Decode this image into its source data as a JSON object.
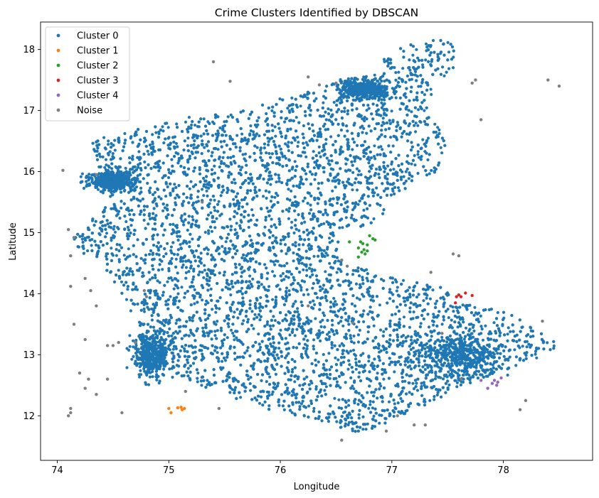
{
  "chart_data": {
    "type": "scatter",
    "title": "Crime Clusters Identified by DBSCAN",
    "xlabel": "Longitude",
    "ylabel": "Latitude",
    "xlim": [
      73.85,
      78.8
    ],
    "ylim": [
      11.27,
      18.45
    ],
    "xticks": [
      74,
      75,
      76,
      77,
      78
    ],
    "yticks": [
      12,
      13,
      14,
      15,
      16,
      17,
      18
    ],
    "grid": false,
    "legend_position": "top-left",
    "series": [
      {
        "name": "Cluster 0",
        "color": "#1f77b4",
        "region_outline": [
          [
            74.15,
            14.9
          ],
          [
            74.4,
            15.5
          ],
          [
            74.5,
            15.4
          ],
          [
            74.3,
            16.5
          ],
          [
            74.7,
            16.7
          ],
          [
            75.2,
            16.9
          ],
          [
            75.6,
            17.0
          ],
          [
            76.2,
            17.3
          ],
          [
            76.5,
            17.5
          ],
          [
            76.8,
            17.6
          ],
          [
            77.0,
            18.0
          ],
          [
            77.2,
            18.15
          ],
          [
            77.5,
            18.15
          ],
          [
            77.65,
            17.9
          ],
          [
            77.45,
            17.5
          ],
          [
            77.3,
            17.0
          ],
          [
            77.5,
            16.5
          ],
          [
            77.4,
            16.0
          ],
          [
            77.0,
            15.6
          ],
          [
            76.9,
            15.2
          ],
          [
            76.55,
            15.0
          ],
          [
            76.5,
            14.6
          ],
          [
            76.9,
            14.3
          ],
          [
            77.2,
            14.2
          ],
          [
            77.45,
            14.1
          ],
          [
            77.6,
            13.85
          ],
          [
            77.95,
            13.8
          ],
          [
            78.4,
            13.3
          ],
          [
            78.55,
            13.2
          ],
          [
            78.3,
            12.95
          ],
          [
            77.9,
            12.65
          ],
          [
            77.5,
            12.35
          ],
          [
            77.1,
            12.0
          ],
          [
            76.7,
            11.7
          ],
          [
            76.4,
            11.9
          ],
          [
            75.9,
            12.1
          ],
          [
            75.4,
            12.4
          ],
          [
            75.0,
            12.75
          ],
          [
            74.8,
            13.1
          ],
          [
            74.7,
            13.6
          ],
          [
            74.45,
            14.3
          ],
          [
            74.2,
            14.7
          ]
        ],
        "hotspots": [
          {
            "center": [
              77.6,
              13.0
            ],
            "spread": [
              0.3,
              0.25
            ]
          },
          {
            "center": [
              76.75,
              17.35
            ],
            "spread": [
              0.15,
              0.1
            ]
          },
          {
            "center": [
              74.5,
              15.85
            ],
            "spread": [
              0.15,
              0.12
            ]
          },
          {
            "center": [
              74.85,
              13.0
            ],
            "spread": [
              0.12,
              0.25
            ]
          }
        ]
      },
      {
        "name": "Cluster 1",
        "color": "#ff7f0e",
        "points": [
          [
            75.0,
            12.12
          ],
          [
            75.02,
            12.05
          ],
          [
            75.08,
            12.13
          ],
          [
            75.11,
            12.14
          ],
          [
            75.12,
            12.1
          ],
          [
            75.14,
            12.12
          ]
        ]
      },
      {
        "name": "Cluster 2",
        "color": "#2ca02c",
        "points": [
          [
            76.62,
            14.85
          ],
          [
            76.7,
            14.6
          ],
          [
            76.7,
            14.75
          ],
          [
            76.72,
            14.85
          ],
          [
            76.75,
            14.72
          ],
          [
            76.76,
            14.65
          ],
          [
            76.78,
            14.8
          ],
          [
            76.8,
            14.95
          ],
          [
            76.83,
            14.9
          ],
          [
            76.85,
            14.88
          ],
          [
            76.73,
            14.68
          ],
          [
            76.78,
            14.7
          ],
          [
            76.74,
            14.82
          ]
        ]
      },
      {
        "name": "Cluster 3",
        "color": "#d62728",
        "points": [
          [
            77.57,
            13.85
          ],
          [
            77.58,
            13.95
          ],
          [
            77.6,
            13.98
          ],
          [
            77.62,
            13.95
          ],
          [
            77.66,
            14.01
          ],
          [
            77.72,
            13.97
          ]
        ]
      },
      {
        "name": "Cluster 4",
        "color": "#9467bd",
        "points": [
          [
            77.8,
            12.58
          ],
          [
            77.86,
            12.45
          ],
          [
            77.9,
            12.53
          ],
          [
            77.92,
            12.58
          ],
          [
            77.94,
            12.5
          ],
          [
            77.95,
            12.55
          ],
          [
            77.98,
            12.62
          ]
        ]
      },
      {
        "name": "Noise",
        "color": "#7f7f7f",
        "points": [
          [
            74.05,
            16.02
          ],
          [
            74.1,
            15.05
          ],
          [
            74.12,
            14.12
          ],
          [
            74.12,
            14.62
          ],
          [
            74.15,
            14.92
          ],
          [
            74.12,
            12.12
          ],
          [
            74.12,
            12.05
          ],
          [
            74.15,
            13.5
          ],
          [
            74.2,
            12.7
          ],
          [
            74.25,
            13.25
          ],
          [
            74.25,
            12.45
          ],
          [
            74.28,
            12.6
          ],
          [
            74.35,
            12.35
          ],
          [
            74.35,
            13.8
          ],
          [
            74.45,
            12.6
          ],
          [
            74.45,
            13.15
          ],
          [
            74.5,
            13.15
          ],
          [
            74.55,
            13.2
          ],
          [
            74.58,
            12.05
          ],
          [
            74.8,
            13.95
          ],
          [
            74.78,
            14.05
          ],
          [
            75.15,
            12.4
          ],
          [
            75.45,
            12.12
          ],
          [
            75.4,
            17.8
          ],
          [
            75.55,
            17.48
          ],
          [
            76.25,
            17.55
          ],
          [
            76.35,
            17.42
          ],
          [
            76.55,
            14.55
          ],
          [
            76.6,
            14.45
          ],
          [
            76.25,
            13.8
          ],
          [
            76.65,
            13.52
          ],
          [
            76.55,
            11.6
          ],
          [
            76.95,
            11.75
          ],
          [
            77.05,
            12.0
          ],
          [
            77.2,
            11.85
          ],
          [
            77.3,
            11.85
          ],
          [
            77.35,
            14.35
          ],
          [
            77.45,
            13.35
          ],
          [
            77.55,
            14.65
          ],
          [
            77.6,
            14.62
          ],
          [
            77.62,
            12.6
          ],
          [
            77.8,
            16.85
          ],
          [
            77.75,
            17.5
          ],
          [
            77.72,
            17.45
          ],
          [
            78.15,
            12.1
          ],
          [
            78.2,
            12.25
          ],
          [
            78.4,
            17.5
          ],
          [
            78.5,
            17.4
          ],
          [
            74.1,
            12.0
          ],
          [
            74.35,
            15.95
          ],
          [
            74.3,
            14.05
          ],
          [
            74.25,
            14.25
          ],
          [
            76.5,
            17.45
          ],
          [
            75.3,
            15.5
          ],
          [
            78.35,
            13.55
          ],
          [
            74.7,
            13.2
          ]
        ]
      }
    ]
  }
}
